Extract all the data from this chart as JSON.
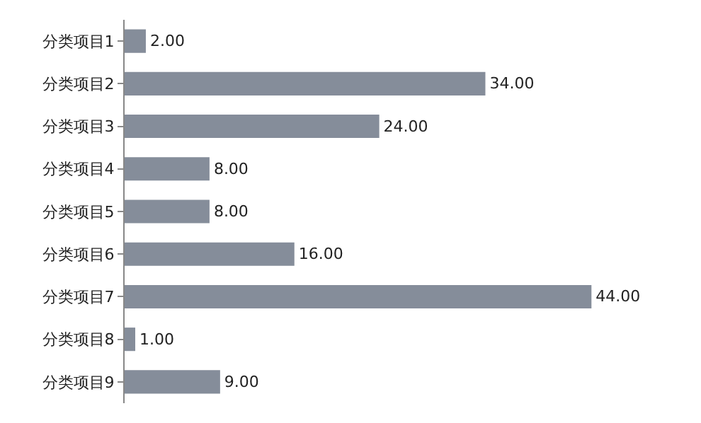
{
  "chart_data": {
    "type": "bar",
    "orientation": "horizontal",
    "categories": [
      "分类项目1",
      "分类项目2",
      "分类项目3",
      "分类项目4",
      "分类项目5",
      "分类项目6",
      "分类项目7",
      "分类项目8",
      "分类项目9"
    ],
    "values": [
      2,
      34,
      24,
      8,
      8,
      16,
      44,
      1,
      9
    ],
    "value_labels": [
      "2.00",
      "34.00",
      "24.00",
      "8.00",
      "8.00",
      "16.00",
      "44.00",
      "1.00",
      "9.00"
    ],
    "color": "#858d9a",
    "legend": false
  }
}
